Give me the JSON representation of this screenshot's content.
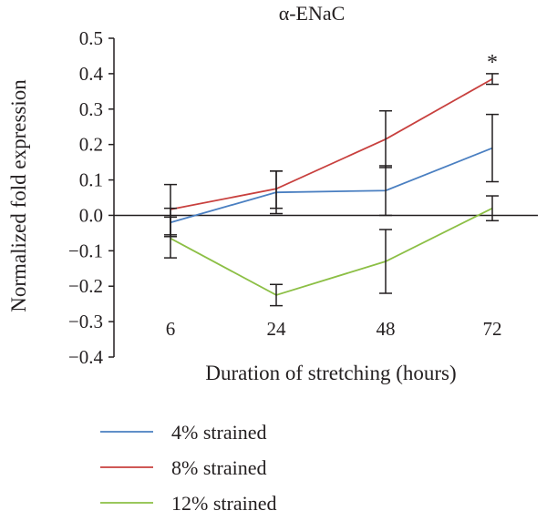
{
  "chart_data": {
    "type": "line",
    "title": "α-ENaC",
    "xlabel": "Duration of stretching (hours)",
    "ylabel": "Normalized fold expression",
    "categories": [
      "6",
      "24",
      "48",
      "72"
    ],
    "ylim": [
      -0.4,
      0.5
    ],
    "yticks": [
      "0.5",
      "0.4",
      "0.3",
      "0.2",
      "0.1",
      "0.0",
      "−0.1",
      "−0.2",
      "−0.3",
      "−0.4"
    ],
    "grid": false,
    "legend_position": "bottom-left",
    "series": [
      {
        "name": "4% strained",
        "color": "#4a7fc1",
        "values": [
          -0.02,
          0.065,
          0.07,
          0.19
        ],
        "error_low": [
          -0.06,
          0.005,
          0.0,
          0.095
        ],
        "error_high": [
          0.02,
          0.125,
          0.14,
          0.285
        ]
      },
      {
        "name": "8% strained",
        "color": "#c8403e",
        "values": [
          0.017,
          0.075,
          0.215,
          0.385
        ],
        "error_low": [
          -0.055,
          0.02,
          0.135,
          0.37
        ],
        "error_high": [
          0.087,
          0.125,
          0.295,
          0.4
        ]
      },
      {
        "name": "12% strained",
        "color": "#8cbf45",
        "values": [
          -0.065,
          -0.225,
          -0.13,
          0.02
        ],
        "error_low": [
          -0.12,
          -0.255,
          -0.22,
          -0.015
        ],
        "error_high": [
          -0.005,
          -0.195,
          -0.04,
          0.055
        ]
      }
    ],
    "annotations": [
      {
        "text": "*",
        "category": "72"
      }
    ]
  }
}
